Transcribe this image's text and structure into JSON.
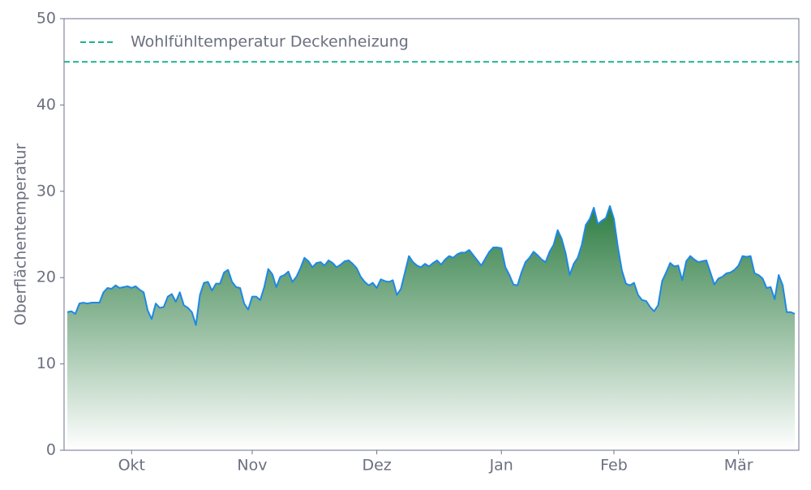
{
  "chart_data": {
    "type": "area",
    "y_label": "Oberflächentemperatur",
    "categories": [
      null,
      null,
      null,
      null,
      null,
      null,
      null,
      null,
      null,
      null,
      null,
      null,
      null,
      null,
      null,
      null,
      "Okt",
      null,
      null,
      null,
      null,
      null,
      null,
      null,
      null,
      null,
      null,
      null,
      null,
      null,
      null,
      null,
      null,
      null,
      null,
      null,
      null,
      null,
      null,
      null,
      null,
      null,
      null,
      null,
      null,
      null,
      "Nov",
      null,
      null,
      null,
      null,
      null,
      null,
      null,
      null,
      null,
      null,
      null,
      null,
      null,
      null,
      null,
      null,
      null,
      null,
      null,
      null,
      null,
      null,
      null,
      null,
      null,
      null,
      null,
      null,
      null,
      null,
      "Dez",
      null,
      null,
      null,
      null,
      null,
      null,
      null,
      null,
      null,
      null,
      null,
      null,
      null,
      null,
      null,
      null,
      null,
      null,
      null,
      null,
      null,
      null,
      null,
      null,
      null,
      null,
      null,
      null,
      null,
      null,
      "Jan",
      null,
      null,
      null,
      null,
      null,
      null,
      null,
      null,
      null,
      null,
      null,
      null,
      null,
      null,
      null,
      null,
      null,
      null,
      null,
      null,
      null,
      null,
      null,
      null,
      null,
      null,
      null,
      "Feb",
      null,
      null,
      null,
      null,
      null,
      null,
      null,
      null,
      null,
      null,
      null,
      null,
      null,
      null,
      null,
      null,
      null,
      null,
      null,
      null,
      null,
      null,
      null,
      null,
      null,
      null,
      null,
      null,
      null,
      null,
      "Mär",
      null,
      null,
      null,
      null,
      null,
      null,
      null,
      null,
      null,
      null,
      null,
      null,
      null,
      null
    ],
    "series": [
      {
        "color": "#1e88e5",
        "values": [
          16.0,
          16.1,
          15.8,
          17.0,
          17.1,
          17.0,
          17.1,
          17.1,
          17.1,
          18.3,
          18.8,
          18.7,
          19.1,
          18.8,
          18.9,
          19.0,
          18.8,
          19.0,
          18.6,
          18.3,
          16.2,
          15.2,
          17.0,
          16.5,
          16.6,
          17.8,
          18.1,
          17.2,
          18.3,
          16.8,
          16.5,
          16.0,
          14.5,
          18.0,
          19.4,
          19.5,
          18.5,
          19.3,
          19.3,
          20.6,
          20.9,
          19.5,
          18.9,
          18.8,
          17.0,
          16.3,
          17.8,
          17.8,
          17.4,
          18.9,
          21.0,
          20.4,
          18.9,
          20.1,
          20.3,
          20.7,
          19.5,
          20.1,
          21.1,
          22.3,
          21.9,
          21.2,
          21.7,
          21.8,
          21.4,
          22.0,
          21.7,
          21.2,
          21.5,
          21.9,
          22.0,
          21.6,
          21.1,
          20.1,
          19.5,
          19.1,
          19.4,
          18.8,
          19.8,
          19.6,
          19.5,
          19.7,
          18.0,
          18.7,
          20.6,
          22.5,
          21.8,
          21.4,
          21.2,
          21.6,
          21.3,
          21.7,
          22.0,
          21.5,
          22.1,
          22.5,
          22.3,
          22.7,
          22.9,
          22.9,
          23.2,
          22.6,
          22.0,
          21.4,
          22.2,
          23.0,
          23.5,
          23.5,
          23.4,
          21.2,
          20.3,
          19.2,
          19.1,
          20.6,
          21.8,
          22.3,
          23.0,
          22.6,
          22.1,
          21.8,
          23.0,
          23.8,
          25.5,
          24.5,
          22.8,
          20.3,
          21.6,
          22.3,
          23.8,
          26.1,
          26.8,
          28.1,
          26.2,
          26.6,
          26.9,
          28.3,
          26.8,
          23.5,
          20.8,
          19.3,
          19.1,
          19.4,
          18.0,
          17.4,
          17.3,
          16.6,
          16.1,
          16.8,
          19.6,
          20.6,
          21.7,
          21.3,
          21.4,
          19.7,
          21.9,
          22.5,
          22.1,
          21.8,
          21.9,
          22.0,
          20.6,
          19.2,
          19.9,
          20.1,
          20.5,
          20.6,
          20.9,
          21.4,
          22.5,
          22.4,
          22.5,
          20.5,
          20.3,
          19.9,
          18.8,
          18.9,
          17.5,
          20.3,
          19.1,
          16.0,
          16.0,
          15.8
        ]
      }
    ],
    "fill_gradient": [
      "#2e7d43",
      "#ffffff"
    ],
    "reference_lines": [
      {
        "value": 45,
        "label": "Wohlfühltemperatur Deckenheizung",
        "color": "#1db38a"
      }
    ],
    "legend": "upper left",
    "ylim": [
      0,
      50
    ],
    "yticks": [
      0,
      10,
      20,
      30,
      40,
      50
    ]
  }
}
